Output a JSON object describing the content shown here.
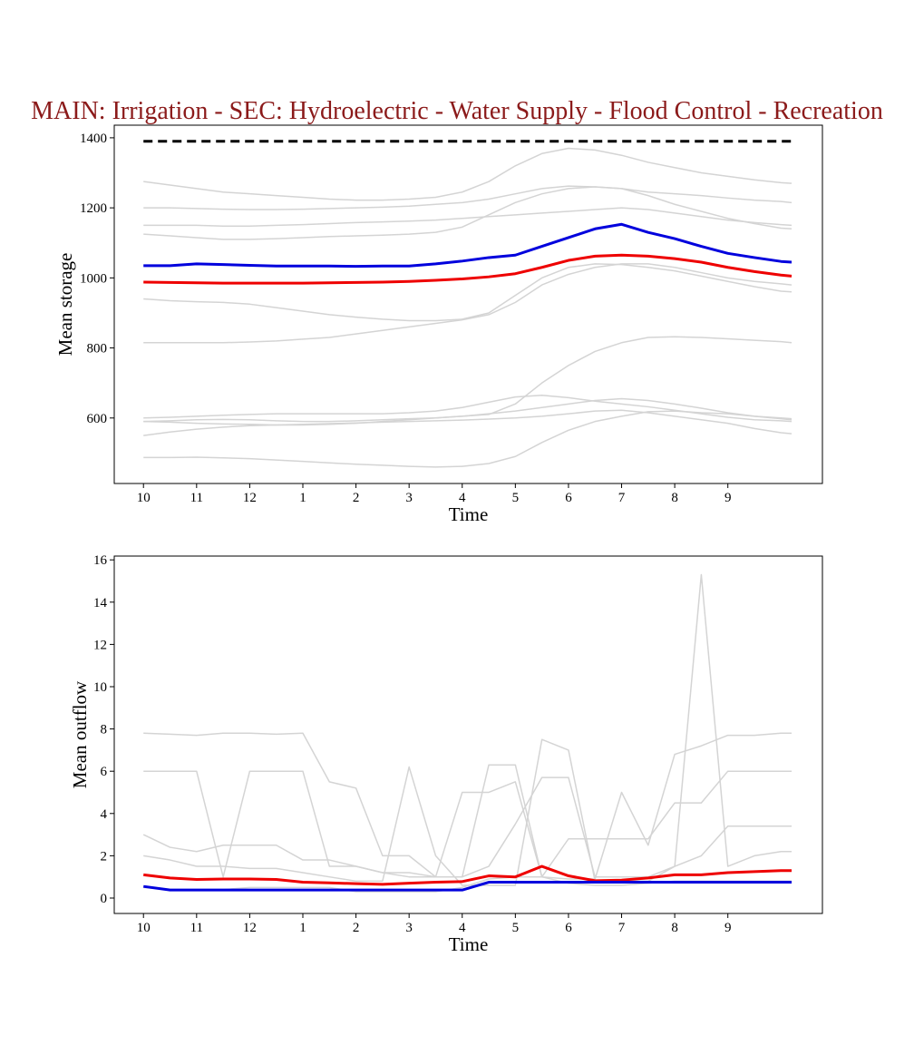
{
  "chart_data": [
    {
      "type": "line",
      "title": "MAIN: Irrigation - SEC: Hydroelectric - Water Supply - Flood Control - Recreation",
      "xlabel": "Time",
      "ylabel": "Mean storage",
      "x": [
        0,
        0.5,
        1,
        1.5,
        2,
        2.5,
        3,
        3.5,
        4,
        4.5,
        5,
        5.5,
        6,
        6.5,
        7,
        7.5,
        8,
        8.5,
        9,
        9.5,
        10,
        10.5,
        11,
        11.5,
        12,
        12.2
      ],
      "xlim": [
        -0.55,
        12.78
      ],
      "xticks": [
        {
          "value": 0,
          "label": "10"
        },
        {
          "value": 1,
          "label": "11"
        },
        {
          "value": 2,
          "label": "12"
        },
        {
          "value": 3,
          "label": "1"
        },
        {
          "value": 4,
          "label": "2"
        },
        {
          "value": 5,
          "label": "3"
        },
        {
          "value": 6,
          "label": "4"
        },
        {
          "value": 7,
          "label": "5"
        },
        {
          "value": 8,
          "label": "6"
        },
        {
          "value": 9,
          "label": "7"
        },
        {
          "value": 10,
          "label": "8"
        },
        {
          "value": 11,
          "label": "9"
        }
      ],
      "ylim": [
        413,
        1436
      ],
      "yticks": [
        600,
        800,
        1000,
        1200,
        1400
      ],
      "series": [
        {
          "color": "#d4d4d4",
          "linewidth": 1.5,
          "values": [
            1275,
            1265,
            1255,
            1245,
            1240,
            1235,
            1230,
            1225,
            1222,
            1222,
            1225,
            1230,
            1245,
            1275,
            1320,
            1355,
            1370,
            1365,
            1350,
            1330,
            1315,
            1300,
            1290,
            1280,
            1272,
            1270
          ]
        },
        {
          "color": "#d4d4d4",
          "linewidth": 1.5,
          "values": [
            1200,
            1200,
            1198,
            1196,
            1195,
            1195,
            1196,
            1198,
            1200,
            1202,
            1205,
            1210,
            1215,
            1225,
            1240,
            1255,
            1262,
            1260,
            1255,
            1245,
            1240,
            1235,
            1228,
            1222,
            1218,
            1215
          ]
        },
        {
          "color": "#d4d4d4",
          "linewidth": 1.5,
          "values": [
            1150,
            1150,
            1150,
            1148,
            1148,
            1150,
            1152,
            1155,
            1158,
            1160,
            1162,
            1165,
            1170,
            1175,
            1180,
            1185,
            1190,
            1195,
            1200,
            1195,
            1185,
            1175,
            1165,
            1158,
            1152,
            1150
          ]
        },
        {
          "color": "#d4d4d4",
          "linewidth": 1.5,
          "values": [
            1125,
            1120,
            1115,
            1110,
            1110,
            1112,
            1115,
            1118,
            1120,
            1122,
            1125,
            1130,
            1145,
            1180,
            1215,
            1240,
            1255,
            1260,
            1255,
            1235,
            1210,
            1190,
            1170,
            1155,
            1142,
            1140
          ]
        },
        {
          "color": "#d4d4d4",
          "linewidth": 1.5,
          "values": [
            940,
            935,
            932,
            930,
            925,
            915,
            905,
            895,
            888,
            882,
            878,
            878,
            882,
            900,
            950,
            1000,
            1030,
            1040,
            1038,
            1030,
            1020,
            1005,
            990,
            975,
            962,
            960
          ]
        },
        {
          "color": "#d4d4d4",
          "linewidth": 1.5,
          "values": [
            815,
            815,
            815,
            815,
            817,
            820,
            825,
            830,
            840,
            850,
            860,
            870,
            880,
            895,
            930,
            980,
            1010,
            1030,
            1040,
            1040,
            1030,
            1015,
            1000,
            990,
            983,
            980
          ]
        },
        {
          "color": "#d4d4d4",
          "linewidth": 1.5,
          "values": [
            600,
            602,
            605,
            608,
            610,
            612,
            612,
            612,
            612,
            612,
            615,
            620,
            630,
            645,
            660,
            665,
            658,
            648,
            640,
            632,
            622,
            612,
            602,
            595,
            592,
            590
          ]
        },
        {
          "color": "#d4d4d4",
          "linewidth": 1.5,
          "values": [
            590,
            592,
            595,
            596,
            595,
            592,
            590,
            590,
            592,
            595,
            598,
            600,
            605,
            612,
            620,
            630,
            640,
            650,
            655,
            650,
            640,
            628,
            615,
            605,
            598,
            595
          ]
        },
        {
          "color": "#d4d4d4",
          "linewidth": 1.5,
          "values": [
            550,
            560,
            568,
            574,
            578,
            580,
            582,
            584,
            586,
            588,
            590,
            592,
            594,
            597,
            600,
            605,
            612,
            620,
            622,
            615,
            605,
            595,
            585,
            570,
            558,
            555
          ]
        },
        {
          "color": "#d4d4d4",
          "linewidth": 1.5,
          "values": [
            487,
            487,
            488,
            486,
            484,
            480,
            476,
            472,
            468,
            465,
            462,
            460,
            462,
            470,
            490,
            530,
            565,
            590,
            605,
            618,
            620,
            615,
            612,
            605,
            600,
            598
          ]
        },
        {
          "color": "#d4d4d4",
          "linewidth": 1.5,
          "values": [
            590,
            588,
            585,
            583,
            582,
            580,
            580,
            582,
            585,
            590,
            595,
            600,
            605,
            610,
            640,
            700,
            750,
            790,
            815,
            830,
            832,
            830,
            826,
            822,
            818,
            815
          ]
        },
        {
          "color": "#000000",
          "linewidth": 3,
          "dashed": true,
          "values": [
            1390,
            1390,
            1390,
            1390,
            1390,
            1390,
            1390,
            1390,
            1390,
            1390,
            1390,
            1390,
            1390,
            1390,
            1390,
            1390,
            1390,
            1390,
            1390,
            1390,
            1390,
            1390,
            1390,
            1390,
            1390,
            1390
          ]
        },
        {
          "color": "#ee0000",
          "linewidth": 3,
          "values": [
            988,
            987,
            986,
            985,
            985,
            985,
            985,
            986,
            987,
            988,
            990,
            993,
            997,
            1003,
            1012,
            1030,
            1050,
            1062,
            1065,
            1062,
            1055,
            1045,
            1030,
            1018,
            1008,
            1005
          ]
        },
        {
          "color": "#0000dd",
          "linewidth": 3,
          "values": [
            1035,
            1035,
            1040,
            1038,
            1036,
            1034,
            1034,
            1034,
            1033,
            1034,
            1034,
            1040,
            1048,
            1058,
            1065,
            1090,
            1115,
            1140,
            1153,
            1130,
            1112,
            1090,
            1070,
            1058,
            1047,
            1045
          ]
        }
      ]
    },
    {
      "type": "line",
      "xlabel": "Time",
      "ylabel": "Mean outflow",
      "x": [
        0,
        0.5,
        1,
        1.5,
        2,
        2.5,
        3,
        3.5,
        4,
        4.5,
        5,
        5.5,
        6,
        6.5,
        7,
        7.5,
        8,
        8.5,
        9,
        9.5,
        10,
        10.5,
        11,
        11.5,
        12,
        12.2
      ],
      "xlim": [
        -0.55,
        12.78
      ],
      "xticks": [
        {
          "value": 0,
          "label": "10"
        },
        {
          "value": 1,
          "label": "11"
        },
        {
          "value": 2,
          "label": "12"
        },
        {
          "value": 3,
          "label": "1"
        },
        {
          "value": 4,
          "label": "2"
        },
        {
          "value": 5,
          "label": "3"
        },
        {
          "value": 6,
          "label": "4"
        },
        {
          "value": 7,
          "label": "5"
        },
        {
          "value": 8,
          "label": "6"
        },
        {
          "value": 9,
          "label": "7"
        },
        {
          "value": 10,
          "label": "8"
        },
        {
          "value": 11,
          "label": "9"
        }
      ],
      "ylim": [
        -0.73,
        16.18
      ],
      "yticks": [
        0,
        2,
        4,
        6,
        8,
        10,
        12,
        14,
        16
      ],
      "series": [
        {
          "color": "#d4d4d4",
          "linewidth": 1.5,
          "values": [
            7.8,
            7.75,
            7.7,
            7.8,
            7.8,
            7.75,
            7.8,
            5.5,
            5.2,
            2.0,
            2.0,
            1.0,
            1.0,
            6.3,
            6.3,
            1.0,
            0.9,
            0.9,
            5.0,
            2.5,
            6.8,
            7.2,
            7.7,
            7.7,
            7.8,
            7.8
          ]
        },
        {
          "color": "#d4d4d4",
          "linewidth": 1.5,
          "values": [
            6.0,
            6.0,
            6.0,
            1.0,
            6.0,
            6.0,
            6.0,
            1.5,
            1.5,
            1.2,
            1.0,
            1.0,
            5.0,
            5.0,
            5.5,
            1.0,
            2.8,
            2.8,
            2.8,
            2.8,
            4.5,
            4.5,
            6.0,
            6.0,
            6.0,
            6.0
          ]
        },
        {
          "color": "#d4d4d4",
          "linewidth": 1.5,
          "values": [
            3.0,
            2.4,
            2.2,
            2.5,
            2.5,
            2.5,
            1.8,
            1.8,
            1.5,
            1.2,
            1.2,
            1.0,
            1.0,
            1.5,
            3.5,
            5.7,
            5.7,
            1.0,
            1.0,
            1.0,
            1.5,
            2.0,
            3.4,
            3.4,
            3.4,
            3.4
          ]
        },
        {
          "color": "#d4d4d4",
          "linewidth": 1.5,
          "values": [
            2.0,
            1.8,
            1.5,
            1.5,
            1.4,
            1.4,
            1.2,
            1.0,
            0.8,
            0.8,
            6.2,
            2.0,
            0.6,
            0.6,
            0.6,
            7.5,
            7.0,
            0.8,
            0.8,
            0.8,
            1.5,
            15.3,
            1.5,
            2.0,
            2.2,
            2.2
          ]
        },
        {
          "color": "#d4d4d4",
          "linewidth": 1.5,
          "values": [
            0.5,
            0.4,
            0.4,
            0.4,
            0.5,
            0.5,
            0.5,
            0.5,
            0.3,
            0.3,
            0.3,
            0.3,
            0.5,
            0.9,
            1.0,
            1.0,
            0.7,
            0.6,
            0.6,
            0.7,
            0.8,
            0.8,
            0.8,
            0.8,
            0.8,
            0.8
          ]
        },
        {
          "color": "#ee0000",
          "linewidth": 3,
          "values": [
            1.1,
            0.95,
            0.88,
            0.9,
            0.9,
            0.88,
            0.75,
            0.72,
            0.68,
            0.65,
            0.7,
            0.75,
            0.78,
            1.05,
            1.0,
            1.5,
            1.05,
            0.82,
            0.85,
            0.95,
            1.1,
            1.1,
            1.2,
            1.25,
            1.3,
            1.3
          ]
        },
        {
          "color": "#0000dd",
          "linewidth": 3,
          "values": [
            0.55,
            0.38,
            0.38,
            0.38,
            0.38,
            0.38,
            0.38,
            0.38,
            0.38,
            0.38,
            0.38,
            0.38,
            0.38,
            0.75,
            0.75,
            0.75,
            0.75,
            0.75,
            0.75,
            0.75,
            0.75,
            0.75,
            0.75,
            0.75,
            0.75,
            0.75
          ]
        }
      ]
    }
  ]
}
